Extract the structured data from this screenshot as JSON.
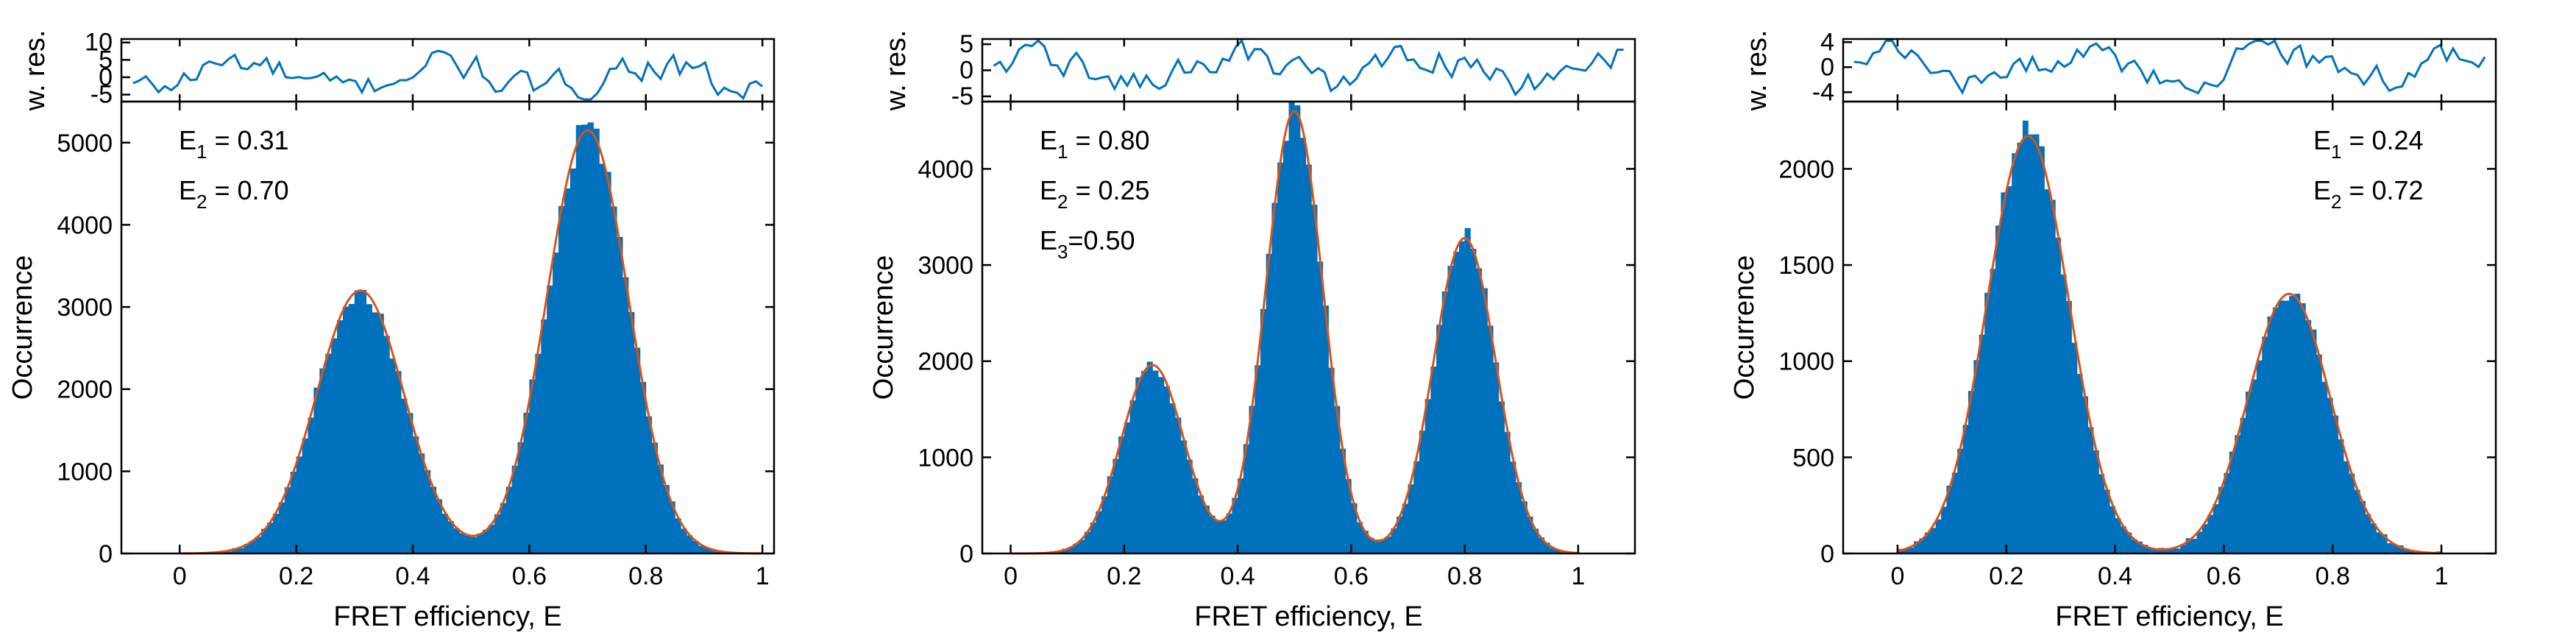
{
  "colors": {
    "bar": "#0072BD",
    "fit": "#D95319",
    "residual": "#0072BD",
    "axis": "#000000"
  },
  "chart_data": [
    {
      "type": "bar",
      "title": "",
      "xlabel": "FRET efficiency, E",
      "ylabel": "Occurrence",
      "residual_ylabel": "w. res.",
      "xlim": [
        -0.1,
        1.02
      ],
      "ylim": [
        0,
        5500
      ],
      "xticks": [
        0,
        0.2,
        0.4,
        0.6,
        0.8,
        1
      ],
      "xtick_labels": [
        "0",
        "0.2",
        "0.4",
        "0.6",
        "0.8",
        "1"
      ],
      "yticks": [
        0,
        1000,
        2000,
        3000,
        4000,
        5000
      ],
      "ytick_labels": [
        "0",
        "1000",
        "2000",
        "3000",
        "4000",
        "5000"
      ],
      "residual_ylim": [
        -7,
        11
      ],
      "residual_yticks": [
        -5,
        0,
        5,
        10
      ],
      "residual_ytick_labels": [
        "-5",
        "0",
        "5",
        "10"
      ],
      "fit_peaks": [
        {
          "name": "E1",
          "center": 0.31,
          "amplitude": 3200,
          "sigma": 0.075
        },
        {
          "name": "E2",
          "center": 0.7,
          "amplitude": 5150,
          "sigma": 0.07
        }
      ],
      "annotations": [
        {
          "base": "E",
          "sub": "1",
          "text": " = 0.31"
        },
        {
          "base": "E",
          "sub": "2",
          "text": " = 0.70"
        }
      ],
      "annotation_position": "top-left"
    },
    {
      "type": "bar",
      "title": "",
      "xlabel": "FRET efficiency, E",
      "ylabel": "Occurrence",
      "residual_ylabel": "w. res.",
      "xlim": [
        -0.05,
        1.1
      ],
      "ylim": [
        0,
        4700
      ],
      "xticks": [
        0,
        0.2,
        0.4,
        0.6,
        0.8,
        1
      ],
      "xtick_labels": [
        "0",
        "0.2",
        "0.4",
        "0.6",
        "0.8",
        "1"
      ],
      "yticks": [
        0,
        1000,
        2000,
        3000,
        4000
      ],
      "ytick_labels": [
        "0",
        "1000",
        "2000",
        "3000",
        "4000"
      ],
      "residual_ylim": [
        -6,
        6
      ],
      "residual_yticks": [
        -5,
        0,
        5
      ],
      "residual_ytick_labels": [
        "-5",
        "0",
        "5"
      ],
      "fit_peaks": [
        {
          "name": "E1",
          "center": 0.8,
          "amplitude": 3280,
          "sigma": 0.055
        },
        {
          "name": "E2",
          "center": 0.25,
          "amplitude": 1960,
          "sigma": 0.055
        },
        {
          "name": "E3",
          "center": 0.5,
          "amplitude": 4600,
          "sigma": 0.05
        }
      ],
      "annotations": [
        {
          "base": "E",
          "sub": "1",
          "text": " = 0.80"
        },
        {
          "base": "E",
          "sub": "2",
          "text": " = 0.25"
        },
        {
          "base": "E",
          "sub": "3",
          "text": "=0.50"
        }
      ],
      "annotation_position": "top-left"
    },
    {
      "type": "bar",
      "title": "",
      "xlabel": "FRET efficiency, E",
      "ylabel": "Occurrence",
      "residual_ylabel": "w. res.",
      "xlim": [
        -0.1,
        1.1
      ],
      "ylim": [
        0,
        2350
      ],
      "xticks": [
        0,
        0.2,
        0.4,
        0.6,
        0.8,
        1
      ],
      "xtick_labels": [
        "0",
        "0.2",
        "0.4",
        "0.6",
        "0.8",
        "1"
      ],
      "yticks": [
        0,
        500,
        1000,
        1500,
        2000
      ],
      "ytick_labels": [
        "0",
        "500",
        "1000",
        "1500",
        "2000"
      ],
      "residual_ylim": [
        -5.5,
        4.5
      ],
      "residual_yticks": [
        -4,
        0,
        4
      ],
      "residual_ytick_labels": [
        "-4",
        "0",
        "4"
      ],
      "fit_peaks": [
        {
          "name": "E1",
          "center": 0.24,
          "amplitude": 2170,
          "sigma": 0.075
        },
        {
          "name": "E2",
          "center": 0.72,
          "amplitude": 1350,
          "sigma": 0.075
        }
      ],
      "annotations": [
        {
          "base": "E",
          "sub": "1",
          "text": " = 0.24"
        },
        {
          "base": "E",
          "sub": "2",
          "text": " = 0.72"
        }
      ],
      "annotation_position": "top-right"
    }
  ]
}
